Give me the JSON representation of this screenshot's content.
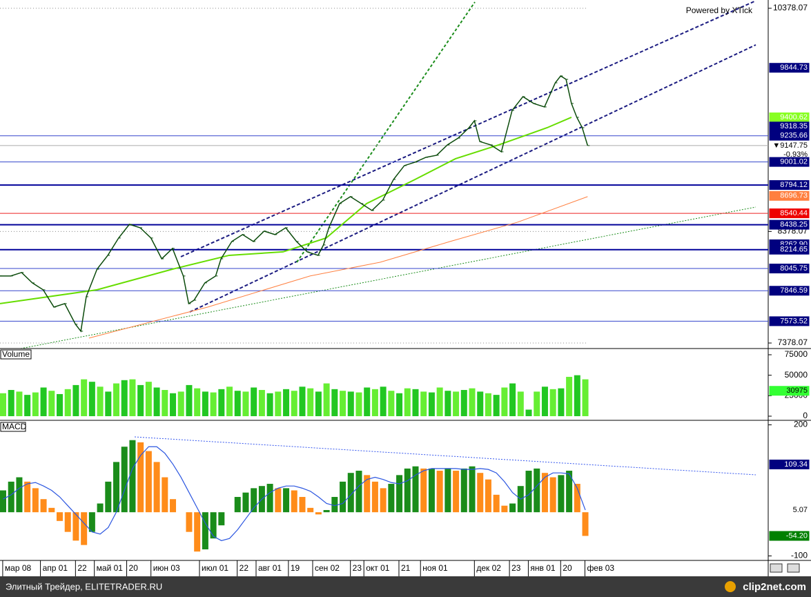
{
  "chart_data": [
    {
      "type": "line",
      "annotation": "Powered by XTick",
      "xlim": [
        0,
        285
      ],
      "ylim": [
        7328.6,
        10452.3
      ],
      "yticks": [
        10378.07,
        8378.07,
        7378.07
      ],
      "grid": true,
      "series": [
        {
          "color": "#0a4a0a",
          "x": [
            0,
            4,
            8,
            12,
            16,
            20,
            24,
            28,
            30,
            32,
            36,
            40,
            44,
            48,
            52,
            56,
            60,
            64,
            68,
            70,
            72,
            76,
            80,
            82,
            86,
            90,
            94,
            98,
            102,
            106,
            110,
            114,
            118,
            120,
            122,
            126,
            130,
            134,
            138,
            142,
            146,
            150,
            154,
            158,
            162,
            166,
            170,
            174,
            176,
            178,
            182,
            186,
            190,
            194,
            198,
            202,
            206,
            208,
            210,
            212,
            214,
            216,
            218
          ],
          "values": [
            7979,
            7979,
            8010,
            7917,
            7855,
            7700,
            7731,
            7546,
            7484,
            7793,
            8040,
            8164,
            8319,
            8442,
            8411,
            8319,
            8133,
            8226,
            7979,
            7731,
            7762,
            7917,
            7979,
            8133,
            8288,
            8350,
            8288,
            8381,
            8350,
            8411,
            8288,
            8195,
            8164,
            8257,
            8411,
            8628,
            8690,
            8628,
            8566,
            8659,
            8844,
            8968,
            8999,
            9042,
            9061,
            9154,
            9215,
            9308,
            9370,
            9184,
            9154,
            9092,
            9463,
            9586,
            9525,
            9494,
            9710,
            9772,
            9741,
            9525,
            9401,
            9308,
            9147.75
          ]
        },
        {
          "color": "#66dd00",
          "x": [
            0,
            36,
            64,
            85,
            105,
            121,
            136,
            154,
            169,
            185,
            203,
            212
          ],
          "values": [
            7731,
            7855,
            8040,
            8164,
            8195,
            8319,
            8628,
            8844,
            9030,
            9154,
            9308,
            9401
          ]
        },
        {
          "color": "#ff7f3f",
          "x": [
            33,
            77,
            115,
            141,
            167,
            192,
            218
          ],
          "values": [
            7422,
            7700,
            7979,
            8102,
            8288,
            8461,
            8690
          ]
        }
      ],
      "levels": [
        {
          "value": 9235.66,
          "color": "#3344cc"
        },
        {
          "value": 9147.75,
          "color": "#aaaaaa"
        },
        {
          "value": 9001.02,
          "color": "#3344cc"
        },
        {
          "value": 8794.12,
          "color": "#000099"
        },
        {
          "value": 8540.44,
          "color": "#ee2222"
        },
        {
          "value": 8438.25,
          "color": "#000099"
        },
        {
          "value": 8214.65,
          "color": "#000099"
        },
        {
          "value": 8045.75,
          "color": "#3344cc"
        },
        {
          "value": 7846.59,
          "color": "#3344cc"
        },
        {
          "value": 7573.52,
          "color": "#3344cc"
        }
      ],
      "axis_labels": [
        {
          "value": 9844.73,
          "color": "#00007f",
          "text_color": "#ffffff"
        },
        {
          "value": 9400.62,
          "color": "#88ff22",
          "text_color": "#ffffff"
        },
        {
          "value": 9318.35,
          "color": "#00007f",
          "text_color": "#ffffff"
        },
        {
          "value": 9235.66,
          "color": "#00007f",
          "text_color": "#ffffff"
        },
        {
          "value": 9147.75,
          "label": "▼9147.75",
          "color": "#ffffff",
          "text_color": "#000000"
        },
        {
          "value": 9001.02,
          "color": "#00007f",
          "text_color": "#ffffff"
        },
        {
          "value": 8794.12,
          "color": "#00007f",
          "text_color": "#ffffff"
        },
        {
          "value": 8696.73,
          "color": "#ff7f3f",
          "text_color": "#ffffff"
        },
        {
          "value": 8540.44,
          "color": "#ee0000",
          "text_color": "#ffffff"
        },
        {
          "value": 8438.25,
          "color": "#00007f",
          "text_color": "#ffffff"
        },
        {
          "value": 8262.9,
          "label": "8262.90",
          "color": "#00007f",
          "text_color": "#ffffff"
        },
        {
          "value": 8214.65,
          "color": "#00007f",
          "text_color": "#ffffff"
        },
        {
          "value": 8045.75,
          "color": "#00007f",
          "text_color": "#ffffff"
        },
        {
          "value": 7846.59,
          "color": "#00007f",
          "text_color": "#ffffff"
        },
        {
          "value": 7573.52,
          "color": "#00007f",
          "text_color": "#ffffff"
        }
      ],
      "change_label": "-0.93%"
    },
    {
      "type": "bar",
      "title": "Volume",
      "xlim": [
        0,
        285
      ],
      "ylim": [
        -4213,
        81741
      ],
      "yticks": [
        75000,
        50000,
        25000,
        0
      ],
      "color": "#22c722",
      "x": [
        0,
        3,
        6,
        9,
        12,
        15,
        18,
        21,
        24,
        27,
        30,
        33,
        36,
        39,
        42,
        45,
        48,
        51,
        54,
        57,
        60,
        63,
        66,
        69,
        72,
        75,
        78,
        81,
        84,
        87,
        90,
        93,
        96,
        99,
        102,
        105,
        108,
        111,
        114,
        117,
        120,
        123,
        126,
        129,
        132,
        135,
        138,
        141,
        144,
        147,
        150,
        153,
        156,
        159,
        162,
        165,
        168,
        171,
        174,
        177,
        180,
        183,
        186,
        189,
        192,
        195,
        198,
        201,
        204,
        207,
        210,
        213,
        216
      ],
      "values": [
        28000,
        32000,
        30000,
        26000,
        29000,
        35000,
        31000,
        27000,
        33000,
        38000,
        45000,
        42000,
        36000,
        30000,
        40000,
        44000,
        45000,
        38000,
        42000,
        35000,
        32000,
        28000,
        30000,
        38000,
        34000,
        30000,
        29000,
        33000,
        36000,
        31000,
        30000,
        35000,
        32000,
        28000,
        30000,
        33000,
        31000,
        36000,
        34000,
        30000,
        40000,
        33000,
        31000,
        30000,
        29000,
        35000,
        33000,
        36000,
        31000,
        28000,
        34000,
        33000,
        30000,
        29000,
        35000,
        31000,
        30000,
        32000,
        34000,
        30000,
        28000,
        26000,
        35000,
        40000,
        30000,
        8000,
        30000,
        36000,
        33000,
        34000,
        48000,
        50000,
        45000
      ],
      "axis_labels": [
        {
          "value": 30975,
          "color": "#33ff33",
          "text_color": "#000000"
        }
      ]
    },
    {
      "type": "macd",
      "title": "MACD",
      "xlim": [
        0,
        285
      ],
      "ylim": [
        -110.3,
        208.8
      ],
      "yticks": [
        200,
        -100
      ],
      "up_color": "#1a8c1a",
      "down_color": "#ff8c1a",
      "x": [
        0,
        3,
        6,
        9,
        12,
        15,
        18,
        21,
        24,
        27,
        30,
        33,
        36,
        39,
        42,
        45,
        48,
        51,
        54,
        57,
        60,
        63,
        66,
        69,
        72,
        75,
        78,
        81,
        84,
        87,
        90,
        93,
        96,
        99,
        102,
        105,
        108,
        111,
        114,
        117,
        120,
        123,
        126,
        129,
        132,
        135,
        138,
        141,
        144,
        147,
        150,
        153,
        156,
        159,
        162,
        165,
        168,
        171,
        174,
        177,
        180,
        183,
        186,
        189,
        192,
        195,
        198,
        201,
        204,
        207,
        210,
        213,
        216
      ],
      "values": [
        50,
        70,
        80,
        70,
        55,
        30,
        10,
        -20,
        -45,
        -65,
        -75,
        -45,
        20,
        70,
        115,
        150,
        165,
        160,
        140,
        115,
        80,
        30,
        0,
        -45,
        -90,
        -85,
        -60,
        -30,
        0,
        35,
        45,
        55,
        60,
        65,
        55,
        55,
        50,
        35,
        10,
        -5,
        5,
        35,
        70,
        90,
        95,
        85,
        70,
        55,
        65,
        85,
        100,
        105,
        100,
        100,
        95,
        100,
        95,
        100,
        105,
        90,
        75,
        40,
        15,
        20,
        60,
        95,
        100,
        90,
        80,
        85,
        95,
        65,
        -54.2
      ],
      "signal": {
        "color": "#2a55e0",
        "values": [
          30,
          40,
          55,
          65,
          68,
          60,
          50,
          35,
          15,
          -5,
          -25,
          -45,
          -50,
          -35,
          0,
          50,
          100,
          130,
          150,
          150,
          135,
          110,
          80,
          45,
          10,
          -25,
          -55,
          -65,
          -60,
          -40,
          -15,
          10,
          30,
          45,
          55,
          60,
          60,
          55,
          48,
          35,
          20,
          15,
          20,
          40,
          60,
          75,
          80,
          75,
          68,
          65,
          72,
          85,
          95,
          100,
          100,
          100,
          100,
          98,
          98,
          100,
          98,
          90,
          70,
          45,
          30,
          40,
          60,
          80,
          90,
          90,
          88,
          55,
          5.07
        ]
      },
      "axis_labels": [
        {
          "value": 109.34,
          "color": "#00007f",
          "text_color": "#ffffff"
        },
        {
          "value": 5.07,
          "color": "#ffffff",
          "text_color": "#000000"
        },
        {
          "value": -54.2,
          "label": "-54.20",
          "color": "#008000",
          "text_color": "#ffffff"
        }
      ],
      "xticks": [
        {
          "value": 1,
          "label": "мар 08"
        },
        {
          "value": 15,
          "label": "апр 01"
        },
        {
          "value": 28,
          "label": "22"
        },
        {
          "value": 35,
          "label": "май 01"
        },
        {
          "value": 47,
          "label": "20"
        },
        {
          "value": 56,
          "label": "июн 03"
        },
        {
          "value": 74,
          "label": "июл 01"
        },
        {
          "value": 88,
          "label": "22"
        },
        {
          "value": 95,
          "label": "авг 01"
        },
        {
          "value": 107,
          "label": "19"
        },
        {
          "value": 116,
          "label": "сен 02"
        },
        {
          "value": 130,
          "label": "23"
        },
        {
          "value": 135,
          "label": "окт 01"
        },
        {
          "value": 148,
          "label": "21"
        },
        {
          "value": 156,
          "label": "ноя 01"
        },
        {
          "value": 176,
          "label": "дек 02"
        },
        {
          "value": 189,
          "label": "23"
        },
        {
          "value": 196,
          "label": "янв 01"
        },
        {
          "value": 208,
          "label": "20"
        },
        {
          "value": 217,
          "label": "фев 03"
        }
      ]
    }
  ],
  "footer": {
    "site": "Элитный Трейдер, ELITETRADER.RU",
    "logo": "clip2net.com"
  }
}
